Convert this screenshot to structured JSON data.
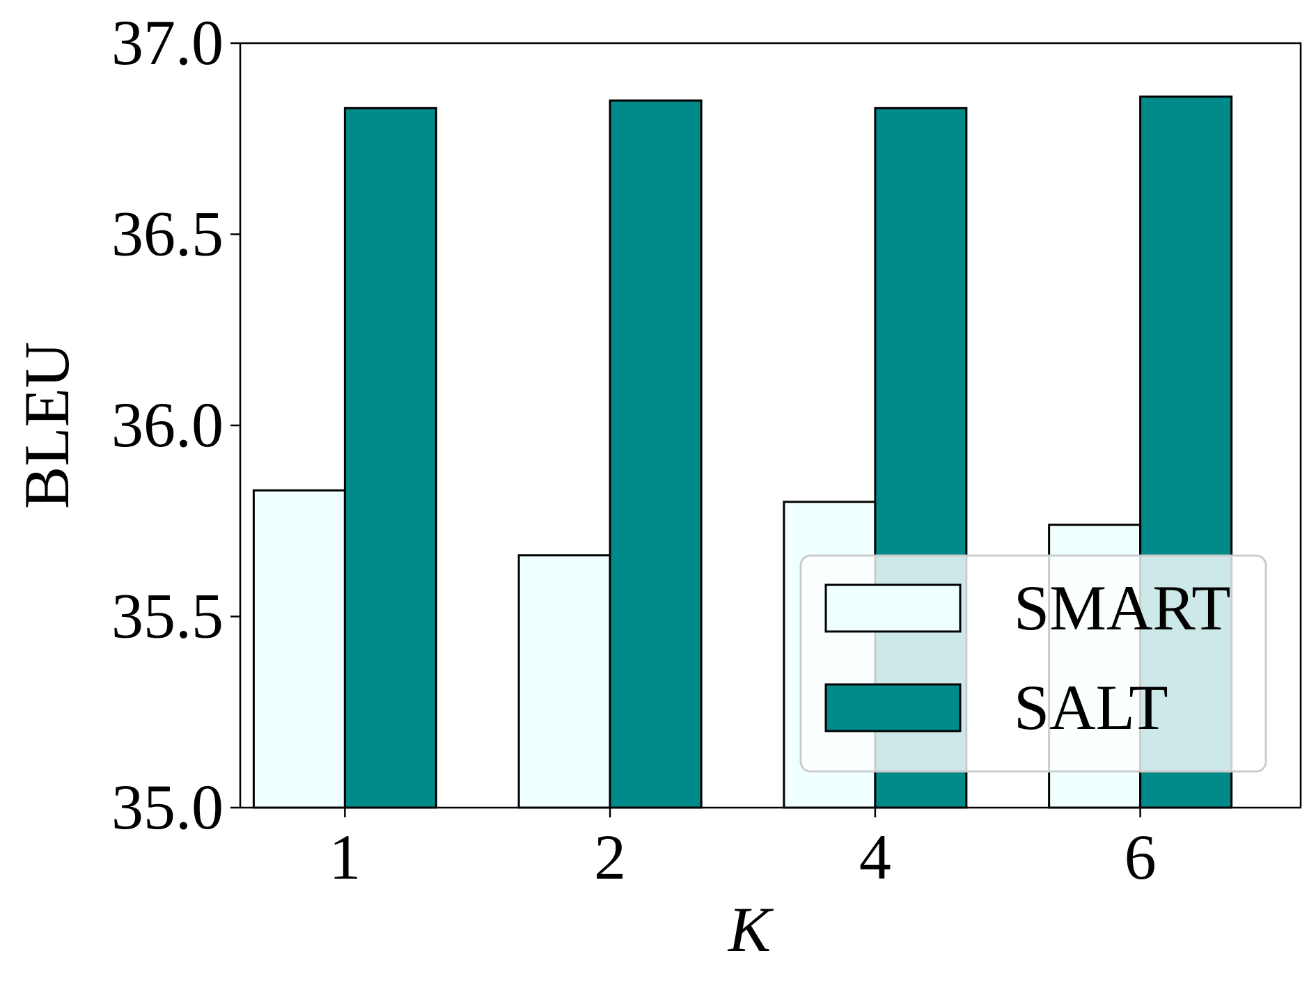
{
  "chart_data": {
    "type": "bar",
    "title": "",
    "xlabel": "K",
    "ylabel": "BLEU",
    "categories": [
      "1",
      "2",
      "4",
      "6"
    ],
    "series": [
      {
        "name": "SMART",
        "values": [
          35.83,
          35.66,
          35.8,
          35.74
        ],
        "color": "#f0ffff"
      },
      {
        "name": "SALT",
        "values": [
          36.83,
          36.85,
          36.83,
          36.86
        ],
        "color": "#008b8a"
      }
    ],
    "ylim": [
      35.0,
      37.0
    ],
    "yticks": [
      "35.0",
      "35.5",
      "36.0",
      "36.5",
      "37.0"
    ],
    "grid": false,
    "legend_position": "lower-right",
    "edge_color": "#000000"
  }
}
